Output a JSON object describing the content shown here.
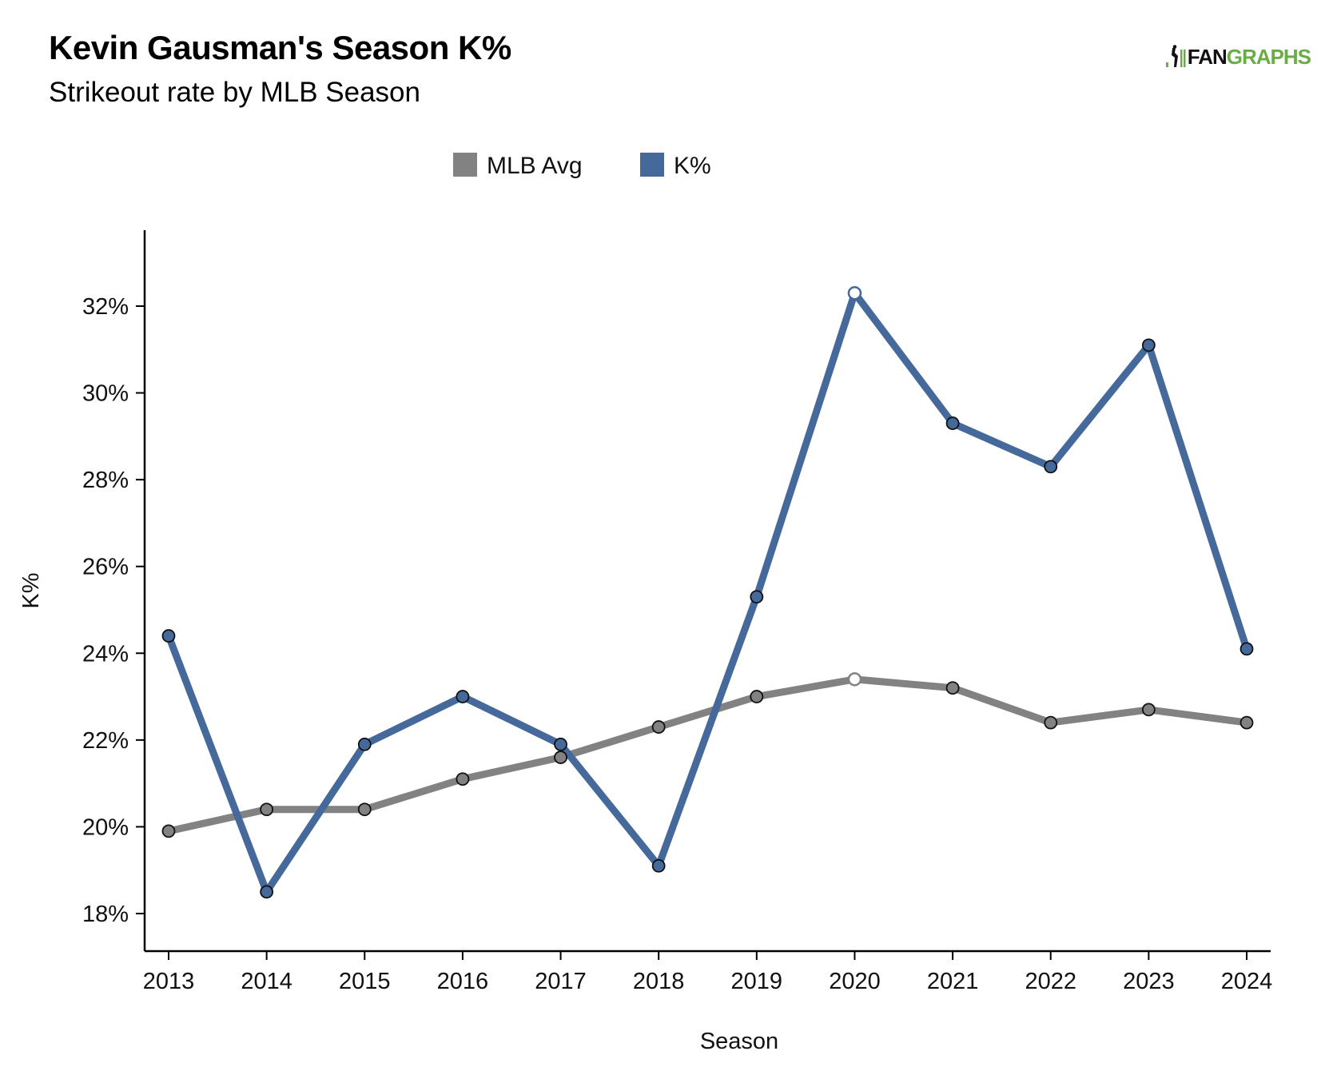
{
  "header": {
    "title": "Kevin Gausman's Season K%",
    "subtitle": "Strikeout rate by MLB Season",
    "logo_text_dark": "FAN",
    "logo_text_green": "GRAPHS",
    "logo_icon": "fangraphs-logo-icon"
  },
  "chart_data": {
    "type": "line",
    "title": "Kevin Gausman's Season K%",
    "subtitle": "Strikeout rate by MLB Season",
    "xlabel": "Season",
    "ylabel": "K%",
    "x": [
      2013,
      2014,
      2015,
      2016,
      2017,
      2018,
      2019,
      2020,
      2021,
      2022,
      2023,
      2024
    ],
    "x_ticks": [
      "2013",
      "2014",
      "2015",
      "2016",
      "2017",
      "2018",
      "2019",
      "2020",
      "2021",
      "2022",
      "2023",
      "2024"
    ],
    "y_ticks": [
      18,
      20,
      22,
      24,
      26,
      28,
      30,
      32
    ],
    "y_tick_labels": [
      "18%",
      "20%",
      "22%",
      "24%",
      "26%",
      "28%",
      "30%",
      "32%"
    ],
    "ylim": [
      17.1,
      33.6
    ],
    "xlim": [
      2012.75,
      2024.25
    ],
    "grid": false,
    "legend_position": "top-center",
    "highlight_x": 2020,
    "series": [
      {
        "name": "MLB Avg",
        "color": "#828282",
        "values": [
          19.9,
          20.4,
          20.4,
          21.1,
          21.6,
          22.3,
          23.0,
          23.4,
          23.2,
          22.4,
          22.7,
          22.4
        ]
      },
      {
        "name": "K%",
        "color": "#44699a",
        "values": [
          24.4,
          18.5,
          21.9,
          23.0,
          21.9,
          19.1,
          25.3,
          32.3,
          29.3,
          28.3,
          31.1,
          24.1
        ]
      }
    ]
  }
}
